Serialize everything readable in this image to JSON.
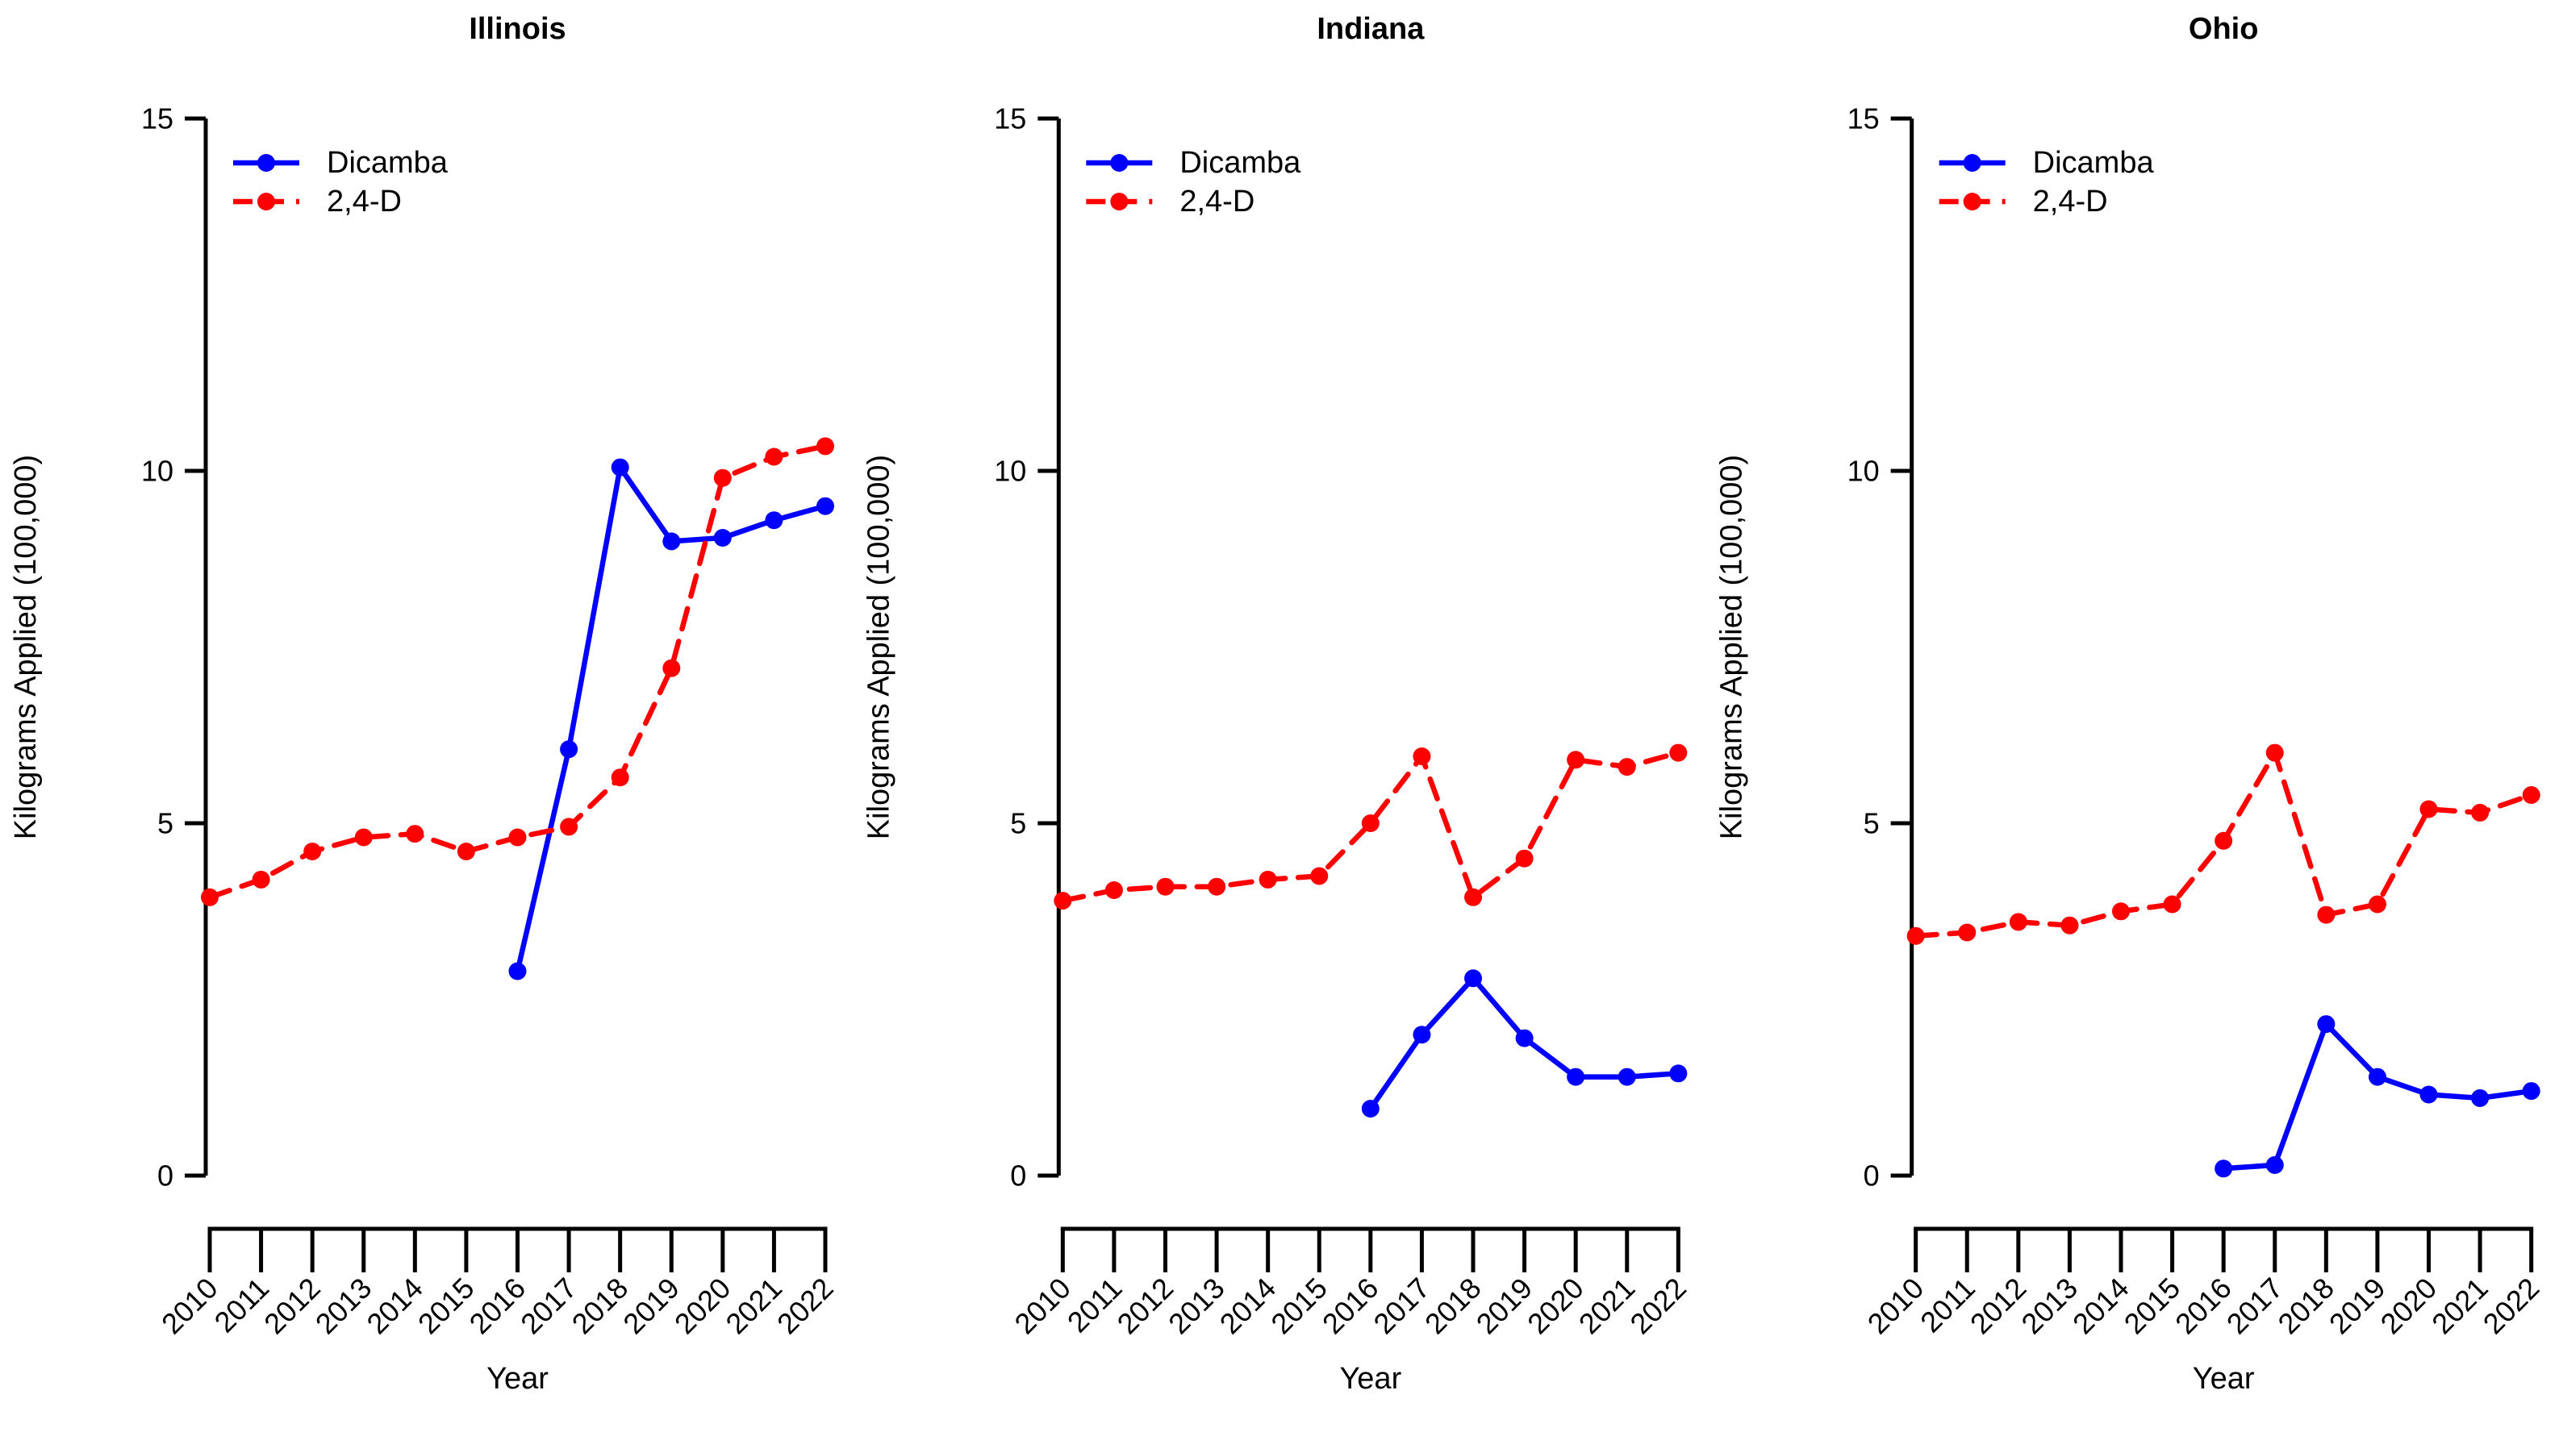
{
  "figure": {
    "background": "#ffffff",
    "axis_color": "#000000",
    "text_color": "#000000"
  },
  "chart_data": [
    {
      "type": "line",
      "title": "Illinois",
      "xlabel": "Year",
      "ylabel": "Kilograms Applied (100,000)",
      "x": [
        2010,
        2011,
        2012,
        2013,
        2014,
        2015,
        2016,
        2017,
        2018,
        2019,
        2020,
        2021,
        2022
      ],
      "ylim": [
        0,
        15
      ],
      "yticks": [
        0,
        5,
        10,
        15
      ],
      "grid": false,
      "legend_position": "top-left",
      "series": [
        {
          "name": "Dicamba",
          "color": "#0000ff",
          "line_style": "solid",
          "marker": "circle",
          "values": [
            null,
            null,
            null,
            null,
            null,
            null,
            2.9,
            6.05,
            10.05,
            9.0,
            9.05,
            9.3,
            9.5
          ]
        },
        {
          "name": "2,4-D",
          "color": "#ff0000",
          "line_style": "dashed",
          "marker": "circle",
          "values": [
            3.95,
            4.2,
            4.6,
            4.8,
            4.85,
            4.6,
            4.8,
            4.95,
            5.65,
            7.2,
            9.9,
            10.2,
            10.35
          ]
        }
      ]
    },
    {
      "type": "line",
      "title": "Indiana",
      "xlabel": "Year",
      "ylabel": "Kilograms Applied (100,000)",
      "x": [
        2010,
        2011,
        2012,
        2013,
        2014,
        2015,
        2016,
        2017,
        2018,
        2019,
        2020,
        2021,
        2022
      ],
      "ylim": [
        0,
        15
      ],
      "yticks": [
        0,
        5,
        10,
        15
      ],
      "grid": false,
      "legend_position": "top-left",
      "series": [
        {
          "name": "Dicamba",
          "color": "#0000ff",
          "line_style": "solid",
          "marker": "circle",
          "values": [
            null,
            null,
            null,
            null,
            null,
            null,
            0.95,
            2.0,
            2.8,
            1.95,
            1.4,
            1.4,
            1.45
          ]
        },
        {
          "name": "2,4-D",
          "color": "#ff0000",
          "line_style": "dashed",
          "marker": "circle",
          "values": [
            3.9,
            4.05,
            4.1,
            4.1,
            4.2,
            4.25,
            5.0,
            5.95,
            3.95,
            4.5,
            5.9,
            5.8,
            6.0
          ]
        }
      ]
    },
    {
      "type": "line",
      "title": "Ohio",
      "xlabel": "Year",
      "ylabel": "Kilograms Applied (100,000)",
      "x": [
        2010,
        2011,
        2012,
        2013,
        2014,
        2015,
        2016,
        2017,
        2018,
        2019,
        2020,
        2021,
        2022
      ],
      "ylim": [
        0,
        15
      ],
      "yticks": [
        0,
        5,
        10,
        15
      ],
      "grid": false,
      "legend_position": "top-left",
      "series": [
        {
          "name": "Dicamba",
          "color": "#0000ff",
          "line_style": "solid",
          "marker": "circle",
          "values": [
            null,
            null,
            null,
            null,
            null,
            null,
            0.1,
            0.15,
            2.15,
            1.4,
            1.15,
            1.1,
            1.2
          ]
        },
        {
          "name": "2,4-D",
          "color": "#ff0000",
          "line_style": "dashed",
          "marker": "circle",
          "values": [
            3.4,
            3.45,
            3.6,
            3.55,
            3.75,
            3.85,
            4.75,
            6.0,
            3.7,
            3.85,
            5.2,
            5.15,
            5.4
          ]
        }
      ]
    }
  ]
}
